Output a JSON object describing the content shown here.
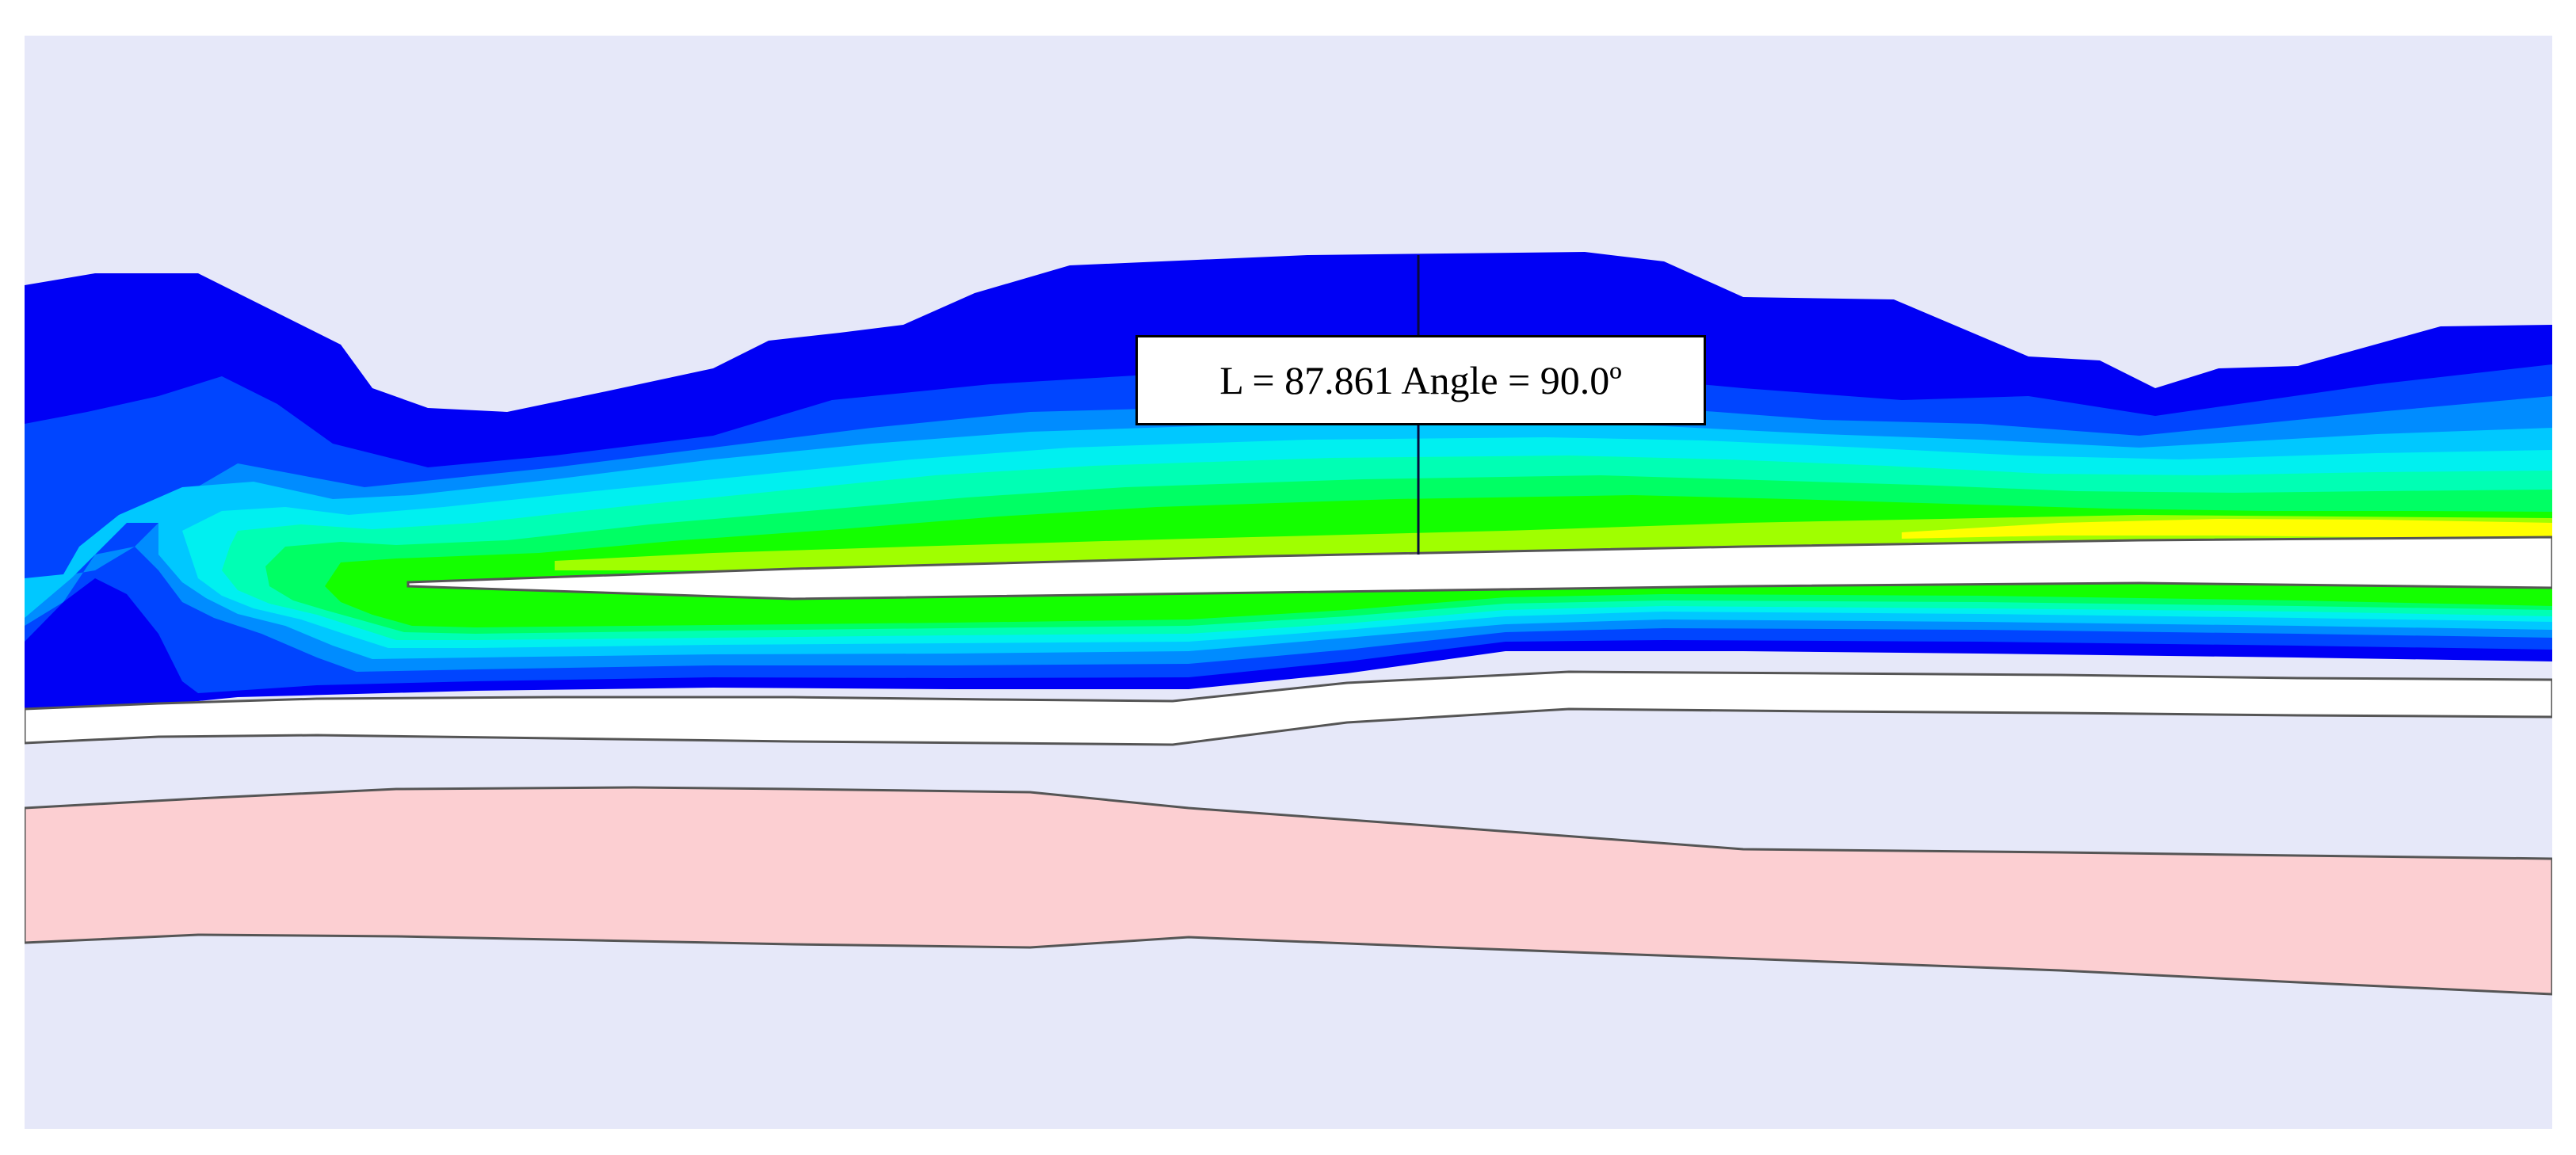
{
  "annotation": {
    "label": "L = 87.861 Angle = 90.0º"
  },
  "colors": {
    "background": "#e6e8f9",
    "contour_levels": [
      "#0000ff",
      "#0050ff",
      "#0096ff",
      "#00d2ff",
      "#00ffe6",
      "#00ffa0",
      "#00ff50",
      "#00ff00",
      "#80ff00",
      "#ffff00"
    ],
    "fracture": "#ffffff",
    "band": "#ffffff",
    "pink_layer": "#fccfd2",
    "lines": "#555555"
  }
}
